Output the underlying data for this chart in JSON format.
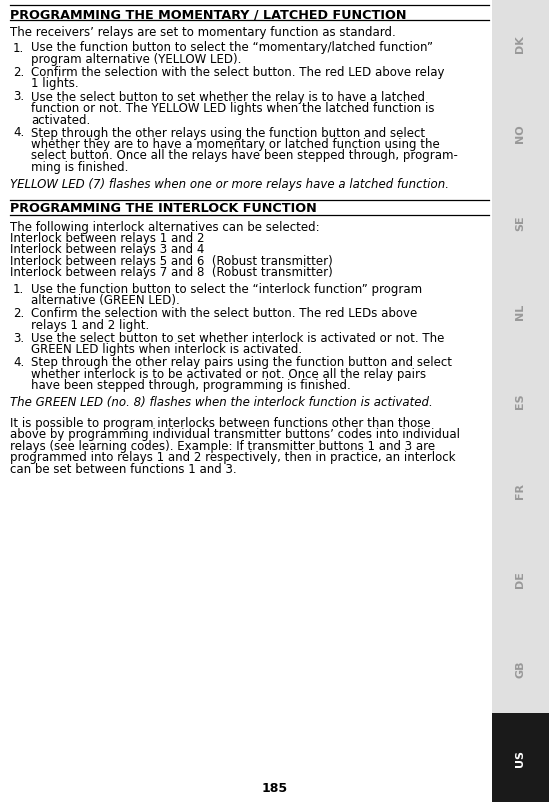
{
  "bg_color": "#ffffff",
  "sidebar_bg": "#e0e0e0",
  "sidebar_active_bg": "#1a1a1a",
  "sidebar_active_text": "#ffffff",
  "sidebar_inactive_text": "#999999",
  "sidebar_labels": [
    "DK",
    "NO",
    "SE",
    "NL",
    "ES",
    "FR",
    "DE",
    "GB",
    "US"
  ],
  "active_label": "US",
  "page_number": "185",
  "title1": "PROGRAMMING THE MOMENTARY / LATCHED FUNCTION",
  "body1": "The receivers’ relays are set to momentary function as standard.",
  "list1": [
    "Use the function button to select the “momentary/latched function”\nprogram alternative (YELLOW LED).",
    "Confirm the selection with the select button. The red LED above relay\n1 lights.",
    "Use the select button to set whether the relay is to have a latched\nfunction or not. The YELLOW LED lights when the latched function is\nactivated.",
    "Step through the other relays using the function button and select\nwhether they are to have a momentary or latched function using the\nselect button. Once all the relays have been stepped through, program-\nming is finished."
  ],
  "note1": "YELLOW LED (7) flashes when one or more relays have a latched function.",
  "title2": "PROGRAMMING THE INTERLOCK FUNCTION",
  "body2": "The following interlock alternatives can be selected:",
  "interlock_list": [
    "Interlock between relays 1 and 2",
    "Interlock between relays 3 and 4",
    "Interlock between relays 5 and 6  (Robust transmitter)",
    "Interlock between relays 7 and 8  (Robust transmitter)"
  ],
  "list2": [
    "Use the function button to select the “interlock function” program\nalternative (GREEN LED).",
    "Confirm the selection with the select button. The red LEDs above\nrelays 1 and 2 light.",
    "Use the select button to set whether interlock is activated or not. The\nGREEN LED lights when interlock is activated.",
    "Step through the other relay pairs using the function button and select\nwhether interlock is to be activated or not. Once all the relay pairs\nhave been stepped through, programming is finished."
  ],
  "note2": "The GREEN LED (no. 8) flashes when the interlock function is activated.",
  "body3_lines": [
    "It is possible to program interlocks between functions other than those",
    "above by programming individual transmitter buttons’ codes into individual",
    "relays (see learning codes). Example: If transmitter buttons 1 and 3 are",
    "programmed into relays 1 and 2 respectively, then in practice, an interlock",
    "can be set between functions 1 and 3."
  ]
}
